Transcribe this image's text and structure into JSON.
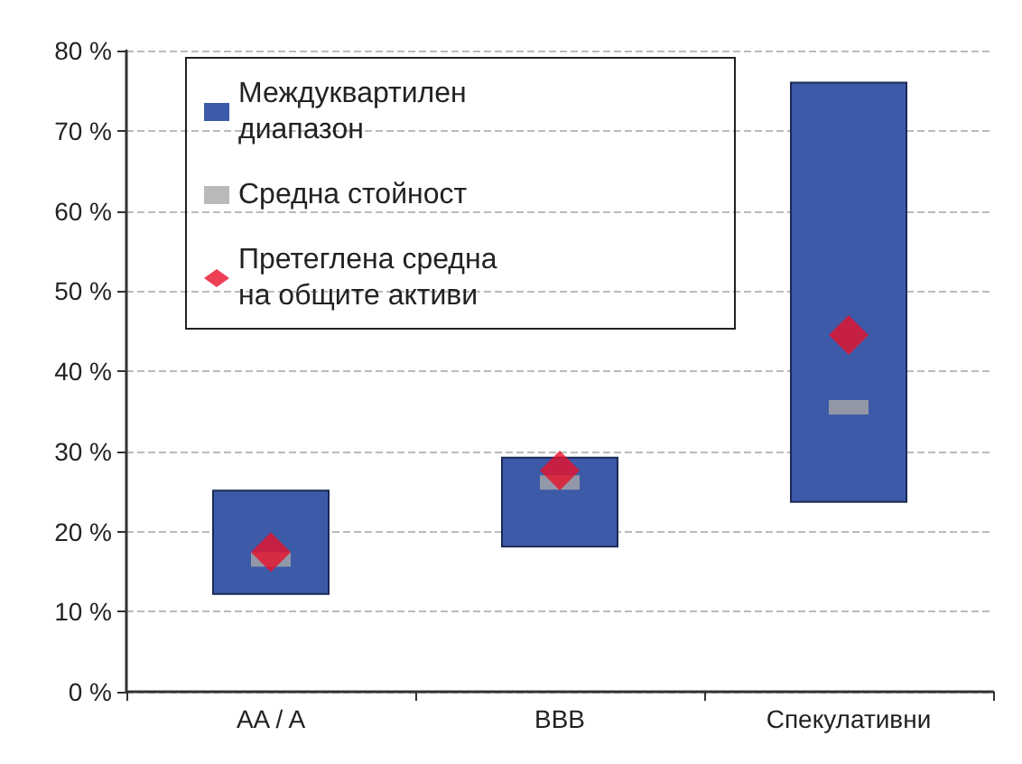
{
  "chart_data": {
    "type": "bar",
    "categories": [
      "AA / A",
      "BBB",
      "Спекулативни"
    ],
    "series": [
      {
        "type": "bar",
        "name": "Междуквартилен диапазон",
        "color": "#3d5aa8",
        "base": [
          12.2,
          18.1,
          23.7
        ],
        "values": [
          12.9,
          11.1,
          52.3
        ]
      },
      {
        "type": "scatter",
        "name": "Средна стойност",
        "color": "#a8a8a8",
        "marker": "square",
        "x": [
          "AA / A",
          "BBB",
          "Спекулативни"
        ],
        "values": [
          16.5,
          26.1,
          35.5
        ]
      },
      {
        "type": "scatter",
        "name": "Претеглена средна на общите активи",
        "color": "#e8102a",
        "marker": "diamond",
        "x": [
          "AA / A",
          "BBB",
          "Спекулативни"
        ],
        "values": [
          17.4,
          27.6,
          44.5
        ]
      }
    ],
    "ylim": [
      0,
      80
    ],
    "yticks": [
      {
        "value": 0,
        "label": "0 %"
      },
      {
        "value": 10,
        "label": "10 %"
      },
      {
        "value": 20,
        "label": "20 %"
      },
      {
        "value": 30,
        "label": "30 %"
      },
      {
        "value": 40,
        "label": "40 %"
      },
      {
        "value": 50,
        "label": "50 %"
      },
      {
        "value": 60,
        "label": "60 %"
      },
      {
        "value": 70,
        "label": "70 %"
      },
      {
        "value": 80,
        "label": "80 %"
      }
    ],
    "grid": "y",
    "legend": "top left"
  }
}
